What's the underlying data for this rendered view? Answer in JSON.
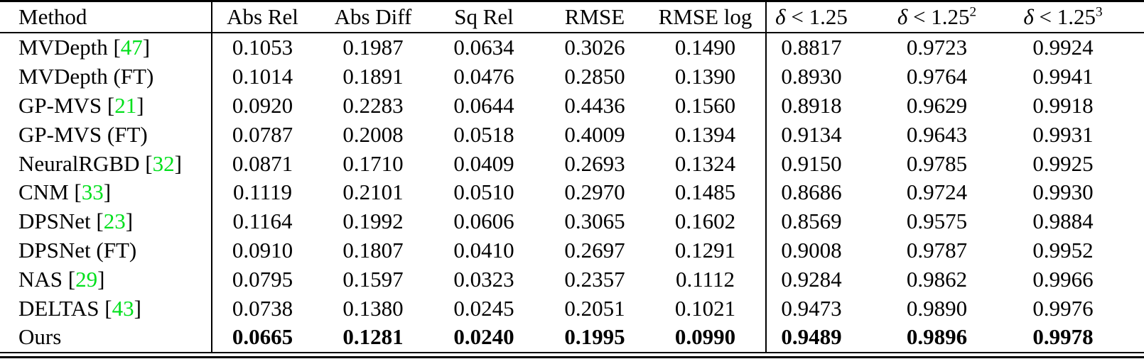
{
  "table": {
    "cite_color": "#00e01c",
    "headers": [
      {
        "label": "Method"
      },
      {
        "label": "Abs Rel"
      },
      {
        "label": "Abs Diff"
      },
      {
        "label": "Sq Rel"
      },
      {
        "label": "RMSE"
      },
      {
        "label": "RMSE log"
      },
      {
        "symbol": "δ",
        "relation": "<",
        "threshold": "1.25",
        "sup": ""
      },
      {
        "symbol": "δ",
        "relation": "<",
        "threshold": "1.25",
        "sup": "2"
      },
      {
        "symbol": "δ",
        "relation": "<",
        "threshold": "1.25",
        "sup": "3"
      }
    ],
    "rows": [
      {
        "method": "MVDepth",
        "cite": "47",
        "bold_values": false,
        "values": [
          "0.1053",
          "0.1987",
          "0.0634",
          "0.3026",
          "0.1490",
          "0.8817",
          "0.9723",
          "0.9924"
        ]
      },
      {
        "method": "MVDepth (FT)",
        "cite": null,
        "bold_values": false,
        "values": [
          "0.1014",
          "0.1891",
          "0.0476",
          "0.2850",
          "0.1390",
          "0.8930",
          "0.9764",
          "0.9941"
        ]
      },
      {
        "method": "GP-MVS",
        "cite": "21",
        "bold_values": false,
        "values": [
          "0.0920",
          "0.2283",
          "0.0644",
          "0.4436",
          "0.1560",
          "0.8918",
          "0.9629",
          "0.9918"
        ]
      },
      {
        "method": "GP-MVS (FT)",
        "cite": null,
        "bold_values": false,
        "values": [
          "0.0787",
          "0.2008",
          "0.0518",
          "0.4009",
          "0.1394",
          "0.9134",
          "0.9643",
          "0.9931"
        ]
      },
      {
        "method": "NeuralRGBD",
        "cite": "32",
        "bold_values": false,
        "values": [
          "0.0871",
          "0.1710",
          "0.0409",
          "0.2693",
          "0.1324",
          "0.9150",
          "0.9785",
          "0.9925"
        ]
      },
      {
        "method": "CNM",
        "cite": "33",
        "bold_values": false,
        "values": [
          "0.1119",
          "0.2101",
          "0.0510",
          "0.2970",
          "0.1485",
          "0.8686",
          "0.9724",
          "0.9930"
        ]
      },
      {
        "method": "DPSNet",
        "cite": "23",
        "bold_values": false,
        "values": [
          "0.1164",
          "0.1992",
          "0.0606",
          "0.3065",
          "0.1602",
          "0.8569",
          "0.9575",
          "0.9884"
        ]
      },
      {
        "method": "DPSNet (FT)",
        "cite": null,
        "bold_values": false,
        "values": [
          "0.0910",
          "0.1807",
          "0.0410",
          "0.2697",
          "0.1291",
          "0.9008",
          "0.9787",
          "0.9952"
        ]
      },
      {
        "method": "NAS",
        "cite": "29",
        "bold_values": false,
        "values": [
          "0.0795",
          "0.1597",
          "0.0323",
          "0.2357",
          "0.1112",
          "0.9284",
          "0.9862",
          "0.9966"
        ]
      },
      {
        "method": "DELTAS",
        "cite": "43",
        "bold_values": false,
        "values": [
          "0.0738",
          "0.1380",
          "0.0245",
          "0.2051",
          "0.1021",
          "0.9473",
          "0.9890",
          "0.9976"
        ]
      },
      {
        "method": "Ours",
        "cite": null,
        "bold_values": true,
        "values": [
          "0.0665",
          "0.1281",
          "0.0240",
          "0.1995",
          "0.0990",
          "0.9489",
          "0.9896",
          "0.9978"
        ]
      }
    ]
  }
}
